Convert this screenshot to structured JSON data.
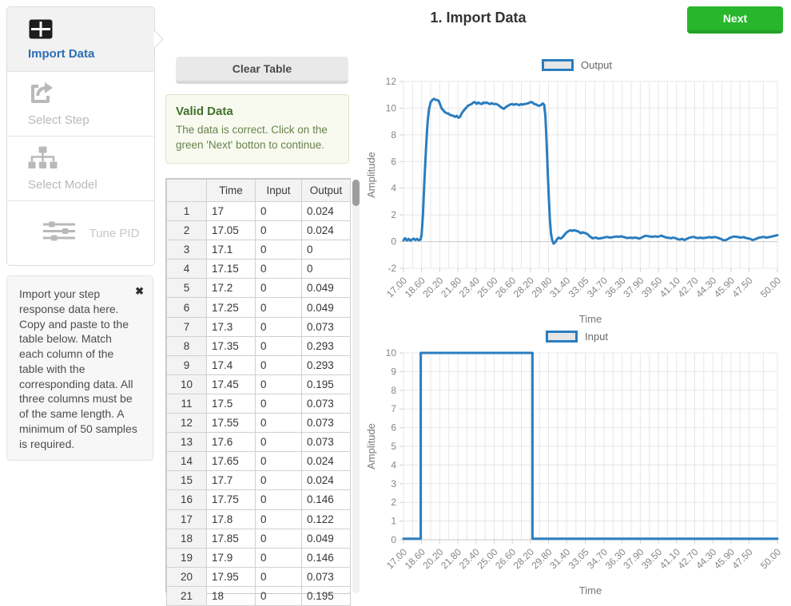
{
  "page": {
    "title": "1. Import Data",
    "next_label": "Next"
  },
  "sidebar": {
    "steps": [
      {
        "label": "Import Data",
        "icon": "table-icon",
        "active": true
      },
      {
        "label": "Select Step",
        "icon": "share-square-icon",
        "active": false
      },
      {
        "label": "Select Model",
        "icon": "sitemap-icon",
        "active": false
      },
      {
        "label": "Tune PID",
        "icon": "sliders-icon",
        "active": false
      }
    ],
    "help": {
      "text": "Import your step response data here. Copy and paste to the table below. Match each column of the table with the corresponding data. All three columns must be of the same length. A minimum of 50 samples is required.",
      "close_glyph": "✖"
    }
  },
  "controls": {
    "clear_table_label": "Clear Table"
  },
  "alert": {
    "title": "Valid Data",
    "message": "The data is correct. Click on the green 'Next' botton to continue."
  },
  "table": {
    "headers": [
      "",
      "Time",
      "Input",
      "Output"
    ],
    "rows": [
      [
        "1",
        "17",
        "0",
        "0.024"
      ],
      [
        "2",
        "17.05",
        "0",
        "0.024"
      ],
      [
        "3",
        "17.1",
        "0",
        "0"
      ],
      [
        "4",
        "17.15",
        "0",
        "0"
      ],
      [
        "5",
        "17.2",
        "0",
        "0.049"
      ],
      [
        "6",
        "17.25",
        "0",
        "0.049"
      ],
      [
        "7",
        "17.3",
        "0",
        "0.073"
      ],
      [
        "8",
        "17.35",
        "0",
        "0.293"
      ],
      [
        "9",
        "17.4",
        "0",
        "0.293"
      ],
      [
        "10",
        "17.45",
        "0",
        "0.195"
      ],
      [
        "11",
        "17.5",
        "0",
        "0.073"
      ],
      [
        "12",
        "17.55",
        "0",
        "0.073"
      ],
      [
        "13",
        "17.6",
        "0",
        "0.073"
      ],
      [
        "14",
        "17.65",
        "0",
        "0.024"
      ],
      [
        "15",
        "17.7",
        "0",
        "0.024"
      ],
      [
        "16",
        "17.75",
        "0",
        "0.146"
      ],
      [
        "17",
        "17.8",
        "0",
        "0.122"
      ],
      [
        "18",
        "17.85",
        "0",
        "0.049"
      ],
      [
        "19",
        "17.9",
        "0",
        "0.146"
      ],
      [
        "20",
        "17.95",
        "0",
        "0.073"
      ],
      [
        "21",
        "18",
        "0",
        "0.195"
      ]
    ]
  },
  "colors": {
    "line_blue": "#2b7dbf",
    "next_green": "#28b62c",
    "active_step_blue": "#2d6eb5",
    "alert_title_green": "#41702b",
    "grid_grey": "#e7e7e7"
  },
  "chart_data": [
    {
      "type": "line",
      "xlabel": "Time",
      "ylabel": "Amplitude",
      "xlim": [
        17,
        50
      ],
      "ylim": [
        -2,
        12
      ],
      "y_ticks": [
        12,
        10,
        8,
        6,
        4,
        2,
        0,
        -2
      ],
      "x_tick_labels": [
        "17.00",
        "18.60",
        "20.20",
        "21.80",
        "23.40",
        "25.00",
        "26.60",
        "28.20",
        "29.80",
        "31.40",
        "33.05",
        "34.70",
        "36.30",
        "37.90",
        "39.50",
        "41.10",
        "42.70",
        "44.30",
        "45.90",
        "47.50",
        "50.00"
      ],
      "grid": true,
      "legend_position": "top",
      "line_color": "#2b7dbf",
      "series": [
        {
          "name": "Output",
          "points": [
            [
              17,
              0.1
            ],
            [
              17.15,
              0.25
            ],
            [
              17.3,
              0.08
            ],
            [
              17.45,
              0.2
            ],
            [
              17.6,
              0.07
            ],
            [
              17.75,
              0.15
            ],
            [
              17.9,
              0.22
            ],
            [
              18.05,
              0.12
            ],
            [
              18.2,
              0.2
            ],
            [
              18.35,
              0.1
            ],
            [
              18.5,
              0.15
            ],
            [
              18.6,
              0.5
            ],
            [
              18.72,
              2.1
            ],
            [
              18.85,
              4.6
            ],
            [
              19,
              7.2
            ],
            [
              19.12,
              8.9
            ],
            [
              19.25,
              9.9
            ],
            [
              19.4,
              10.45
            ],
            [
              19.55,
              10.62
            ],
            [
              19.7,
              10.7
            ],
            [
              19.85,
              10.62
            ],
            [
              20,
              10.6
            ],
            [
              20.1,
              10.55
            ],
            [
              20.2,
              10.35
            ],
            [
              20.35,
              10.0
            ],
            [
              20.5,
              9.85
            ],
            [
              20.65,
              9.7
            ],
            [
              20.8,
              9.62
            ],
            [
              20.95,
              9.6
            ],
            [
              21.1,
              9.5
            ],
            [
              21.25,
              9.45
            ],
            [
              21.4,
              9.42
            ],
            [
              21.55,
              9.35
            ],
            [
              21.7,
              9.42
            ],
            [
              21.85,
              9.28
            ],
            [
              22,
              9.35
            ],
            [
              22.1,
              9.55
            ],
            [
              22.25,
              9.75
            ],
            [
              22.4,
              9.9
            ],
            [
              22.55,
              10.05
            ],
            [
              22.7,
              10.18
            ],
            [
              22.85,
              10.25
            ],
            [
              23,
              10.3
            ],
            [
              23.15,
              10.42
            ],
            [
              23.3,
              10.45
            ],
            [
              23.45,
              10.32
            ],
            [
              23.6,
              10.42
            ],
            [
              23.75,
              10.35
            ],
            [
              23.9,
              10.3
            ],
            [
              24.05,
              10.42
            ],
            [
              24.2,
              10.38
            ],
            [
              24.35,
              10.42
            ],
            [
              24.5,
              10.35
            ],
            [
              24.65,
              10.3
            ],
            [
              24.8,
              10.38
            ],
            [
              24.95,
              10.3
            ],
            [
              25.1,
              10.32
            ],
            [
              25.25,
              10.28
            ],
            [
              25.4,
              10.22
            ],
            [
              25.55,
              10.1
            ],
            [
              25.7,
              10.02
            ],
            [
              25.85,
              9.95
            ],
            [
              26,
              10.05
            ],
            [
              26.15,
              10.15
            ],
            [
              26.3,
              10.22
            ],
            [
              26.45,
              10.28
            ],
            [
              26.6,
              10.3
            ],
            [
              26.75,
              10.25
            ],
            [
              26.9,
              10.3
            ],
            [
              27.05,
              10.28
            ],
            [
              27.2,
              10.22
            ],
            [
              27.35,
              10.3
            ],
            [
              27.5,
              10.26
            ],
            [
              27.65,
              10.3
            ],
            [
              27.8,
              10.32
            ],
            [
              27.95,
              10.35
            ],
            [
              28.1,
              10.4
            ],
            [
              28.25,
              10.45
            ],
            [
              28.4,
              10.42
            ],
            [
              28.55,
              10.3
            ],
            [
              28.7,
              10.28
            ],
            [
              28.85,
              10.2
            ],
            [
              29,
              10.18
            ],
            [
              29.15,
              10.25
            ],
            [
              29.3,
              10.35
            ],
            [
              29.42,
              10.25
            ],
            [
              29.52,
              9.4
            ],
            [
              29.62,
              7.6
            ],
            [
              29.72,
              5.4
            ],
            [
              29.82,
              3.4
            ],
            [
              29.92,
              1.7
            ],
            [
              30.02,
              0.6
            ],
            [
              30.12,
              0.1
            ],
            [
              30.25,
              -0.15
            ],
            [
              30.4,
              -0.05
            ],
            [
              30.55,
              0.18
            ],
            [
              30.7,
              0.3
            ],
            [
              30.85,
              0.22
            ],
            [
              31,
              0.3
            ],
            [
              31.15,
              0.45
            ],
            [
              31.3,
              0.6
            ],
            [
              31.45,
              0.72
            ],
            [
              31.6,
              0.8
            ],
            [
              31.75,
              0.85
            ],
            [
              31.9,
              0.8
            ],
            [
              32.05,
              0.85
            ],
            [
              32.2,
              0.82
            ],
            [
              32.35,
              0.78
            ],
            [
              32.5,
              0.72
            ],
            [
              32.65,
              0.62
            ],
            [
              32.8,
              0.7
            ],
            [
              32.95,
              0.65
            ],
            [
              33.1,
              0.62
            ],
            [
              33.25,
              0.55
            ],
            [
              33.4,
              0.42
            ],
            [
              33.55,
              0.32
            ],
            [
              33.7,
              0.25
            ],
            [
              33.85,
              0.28
            ],
            [
              34,
              0.3
            ],
            [
              34.2,
              0.22
            ],
            [
              34.4,
              0.25
            ],
            [
              34.6,
              0.28
            ],
            [
              34.8,
              0.32
            ],
            [
              35,
              0.35
            ],
            [
              35.2,
              0.3
            ],
            [
              35.4,
              0.32
            ],
            [
              35.6,
              0.35
            ],
            [
              35.8,
              0.38
            ],
            [
              36,
              0.35
            ],
            [
              36.2,
              0.4
            ],
            [
              36.4,
              0.35
            ],
            [
              36.6,
              0.3
            ],
            [
              36.8,
              0.27
            ],
            [
              37,
              0.3
            ],
            [
              37.2,
              0.27
            ],
            [
              37.4,
              0.3
            ],
            [
              37.6,
              0.28
            ],
            [
              37.8,
              0.22
            ],
            [
              38,
              0.3
            ],
            [
              38.2,
              0.38
            ],
            [
              38.4,
              0.44
            ],
            [
              38.6,
              0.4
            ],
            [
              38.8,
              0.38
            ],
            [
              39,
              0.35
            ],
            [
              39.2,
              0.4
            ],
            [
              39.4,
              0.36
            ],
            [
              39.6,
              0.4
            ],
            [
              39.8,
              0.44
            ],
            [
              40,
              0.36
            ],
            [
              40.2,
              0.3
            ],
            [
              40.4,
              0.28
            ],
            [
              40.6,
              0.25
            ],
            [
              40.8,
              0.3
            ],
            [
              41,
              0.26
            ],
            [
              41.2,
              0.18
            ],
            [
              41.4,
              0.15
            ],
            [
              41.6,
              0.2
            ],
            [
              41.8,
              0.12
            ],
            [
              42,
              0.2
            ],
            [
              42.2,
              0.28
            ],
            [
              42.4,
              0.32
            ],
            [
              42.6,
              0.35
            ],
            [
              42.8,
              0.3
            ],
            [
              43,
              0.26
            ],
            [
              43.2,
              0.3
            ],
            [
              43.4,
              0.26
            ],
            [
              43.6,
              0.28
            ],
            [
              43.8,
              0.3
            ],
            [
              44,
              0.34
            ],
            [
              44.2,
              0.3
            ],
            [
              44.4,
              0.34
            ],
            [
              44.6,
              0.32
            ],
            [
              44.8,
              0.26
            ],
            [
              45,
              0.2
            ],
            [
              45.2,
              0.12
            ],
            [
              45.4,
              0.1
            ],
            [
              45.6,
              0.18
            ],
            [
              45.8,
              0.28
            ],
            [
              46,
              0.34
            ],
            [
              46.2,
              0.38
            ],
            [
              46.4,
              0.36
            ],
            [
              46.6,
              0.33
            ],
            [
              46.8,
              0.3
            ],
            [
              47,
              0.34
            ],
            [
              47.2,
              0.28
            ],
            [
              47.4,
              0.24
            ],
            [
              47.6,
              0.2
            ],
            [
              47.8,
              0.12
            ],
            [
              48,
              0.16
            ],
            [
              48.2,
              0.24
            ],
            [
              48.4,
              0.3
            ],
            [
              48.6,
              0.33
            ],
            [
              48.8,
              0.35
            ],
            [
              49,
              0.3
            ],
            [
              49.2,
              0.33
            ],
            [
              49.4,
              0.36
            ],
            [
              49.6,
              0.4
            ],
            [
              49.8,
              0.44
            ],
            [
              50,
              0.48
            ]
          ]
        }
      ]
    },
    {
      "type": "line",
      "xlabel": "Time",
      "ylabel": "Amplitude",
      "xlim": [
        17,
        50
      ],
      "ylim": [
        0,
        10
      ],
      "y_ticks": [
        10,
        9,
        8,
        7,
        6,
        5,
        4,
        3,
        2,
        1,
        0
      ],
      "x_tick_labels": [
        "17.00",
        "18.60",
        "20.20",
        "21.80",
        "23.40",
        "25.00",
        "26.60",
        "28.20",
        "29.80",
        "31.40",
        "33.05",
        "34.70",
        "36.30",
        "37.90",
        "39.50",
        "41.10",
        "42.70",
        "44.30",
        "45.90",
        "47.50",
        "50.00"
      ],
      "grid": true,
      "legend_position": "top",
      "line_color": "#2b7dbf",
      "series": [
        {
          "name": "Input",
          "points": [
            [
              17,
              0.05
            ],
            [
              18.52,
              0.05
            ],
            [
              18.52,
              10
            ],
            [
              28.38,
              10
            ],
            [
              28.38,
              0.05
            ],
            [
              50,
              0.05
            ]
          ]
        }
      ]
    }
  ]
}
